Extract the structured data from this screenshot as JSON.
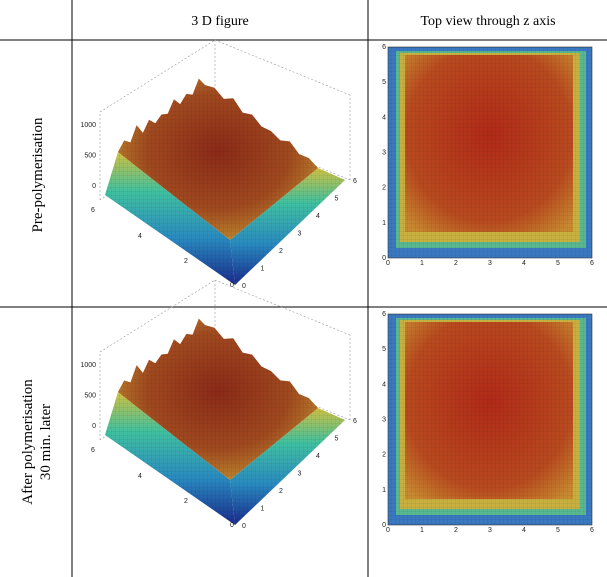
{
  "table": {
    "headers": [
      "3 D figure",
      "Top view through z axis"
    ],
    "rows": [
      {
        "label": [
          "Pre-polymerisation"
        ]
      },
      {
        "label": [
          "After polymerisation",
          "30 min. later"
        ]
      }
    ]
  },
  "plot_3d": {
    "z_ticks": [
      0,
      500,
      1000
    ],
    "x_ticks": [
      0,
      2,
      4,
      6
    ],
    "y_ticks": [
      0,
      1,
      2,
      3,
      4,
      5,
      6
    ]
  },
  "top_view": {
    "x_ticks": [
      0,
      1,
      2,
      3,
      4,
      5,
      6
    ],
    "y_ticks": [
      0,
      1,
      2,
      3,
      4,
      5,
      6
    ]
  }
}
